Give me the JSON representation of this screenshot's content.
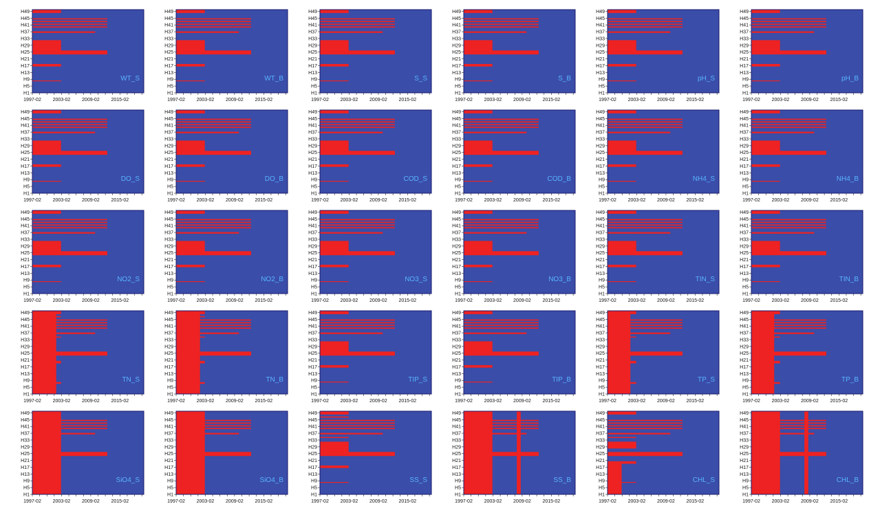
{
  "figure": {
    "rows": 5,
    "cols": 6,
    "colors": {
      "missing": "#ee2222",
      "present": "#3a4da8",
      "frame": "#1a1a6e",
      "label": "#59b4ff"
    }
  },
  "chart_data": {
    "type": "heatmap",
    "description_of_encoding": "red = missing observation, blue = available observation",
    "x_ticks": [
      "1997-02",
      "2003-02",
      "2009-02",
      "2015-02"
    ],
    "x_range_years": [
      1997.1,
      2020.0
    ],
    "y_ticks": [
      "H49",
      "H45",
      "H41",
      "H37",
      "H33",
      "H29",
      "H25",
      "H21",
      "H17",
      "H13",
      "H9",
      "H5",
      "H1"
    ],
    "y_range_station": [
      1,
      50
    ],
    "patterns": {
      "base": [
        {
          "y": [
            48,
            50
          ],
          "x": [
            1997.1,
            2003.0
          ]
        },
        {
          "y": [
            44.2,
            44.9
          ],
          "x": [
            1997.1,
            2012.5
          ]
        },
        {
          "y": [
            42.6,
            43.3
          ],
          "x": [
            1997.1,
            2012.5
          ]
        },
        {
          "y": [
            41.0,
            41.7
          ],
          "x": [
            1997.1,
            2012.5
          ]
        },
        {
          "y": [
            39.4,
            40.1
          ],
          "x": [
            1997.1,
            2012.5
          ]
        },
        {
          "y": [
            36.3,
            37.2
          ],
          "x": [
            1997.1,
            2010.0
          ]
        },
        {
          "y": [
            25.6,
            32.0
          ],
          "x": [
            1997.1,
            2003.0
          ]
        },
        {
          "y": [
            23.6,
            26.0
          ],
          "x": [
            1997.1,
            2012.5
          ]
        },
        {
          "y": [
            16.5,
            18.0
          ],
          "x": [
            1997.1,
            2003.0
          ]
        },
        {
          "y": [
            7.8,
            8.3
          ],
          "x": [
            1997.1,
            2003.0
          ]
        }
      ],
      "tn": [
        {
          "y": [
            1,
            50
          ],
          "x": [
            1997.1,
            2002.0
          ]
        },
        {
          "y": [
            48,
            50
          ],
          "x": [
            1997.1,
            2003.0
          ]
        },
        {
          "y": [
            46.2,
            46.9
          ],
          "x": [
            1997.1,
            2003.0
          ]
        },
        {
          "y": [
            44.2,
            44.9
          ],
          "x": [
            1997.1,
            2012.5
          ]
        },
        {
          "y": [
            42.6,
            43.3
          ],
          "x": [
            1997.1,
            2012.5
          ]
        },
        {
          "y": [
            41.0,
            41.7
          ],
          "x": [
            1997.1,
            2012.5
          ]
        },
        {
          "y": [
            39.4,
            40.1
          ],
          "x": [
            1997.1,
            2012.5
          ]
        },
        {
          "y": [
            36.3,
            37.2
          ],
          "x": [
            1997.1,
            2010.0
          ]
        },
        {
          "y": [
            34.2,
            34.8
          ],
          "x": [
            1997.1,
            2003.0
          ]
        },
        {
          "y": [
            23.6,
            26.0
          ],
          "x": [
            1997.1,
            2012.5
          ]
        },
        {
          "y": [
            19.0,
            20.5
          ],
          "x": [
            1997.1,
            2003.0
          ]
        },
        {
          "y": [
            7.0,
            8.0
          ],
          "x": [
            1997.1,
            2003.0
          ]
        }
      ],
      "tp": [
        {
          "y": [
            1,
            50
          ],
          "x": [
            1997.1,
            2001.8
          ]
        },
        {
          "y": [
            48,
            50
          ],
          "x": [
            1997.1,
            2003.0
          ]
        },
        {
          "y": [
            44.2,
            44.9
          ],
          "x": [
            1997.1,
            2012.5
          ]
        },
        {
          "y": [
            42.6,
            43.3
          ],
          "x": [
            1997.1,
            2012.5
          ]
        },
        {
          "y": [
            41.0,
            41.7
          ],
          "x": [
            1997.1,
            2012.5
          ]
        },
        {
          "y": [
            39.4,
            40.1
          ],
          "x": [
            1997.1,
            2012.5
          ]
        },
        {
          "y": [
            36.3,
            37.2
          ],
          "x": [
            1997.1,
            2010.0
          ]
        },
        {
          "y": [
            34.2,
            34.8
          ],
          "x": [
            1997.1,
            2003.0
          ]
        },
        {
          "y": [
            23.6,
            26.0
          ],
          "x": [
            1997.1,
            2012.5
          ]
        },
        {
          "y": [
            19.0,
            20.5
          ],
          "x": [
            1997.1,
            2003.0
          ]
        },
        {
          "y": [
            7.0,
            8.0
          ],
          "x": [
            1997.1,
            2003.0
          ]
        }
      ],
      "sio4": [
        {
          "y": [
            1,
            50
          ],
          "x": [
            1997.1,
            2003.0
          ]
        },
        {
          "y": [
            44.2,
            44.9
          ],
          "x": [
            1997.1,
            2012.5
          ]
        },
        {
          "y": [
            42.6,
            43.3
          ],
          "x": [
            1997.1,
            2012.5
          ]
        },
        {
          "y": [
            41.0,
            41.7
          ],
          "x": [
            1997.1,
            2012.5
          ]
        },
        {
          "y": [
            39.4,
            40.1
          ],
          "x": [
            1997.1,
            2012.5
          ]
        },
        {
          "y": [
            36.3,
            37.2
          ],
          "x": [
            1997.1,
            2010.0
          ]
        },
        {
          "y": [
            23.6,
            26.0
          ],
          "x": [
            1997.1,
            2012.5
          ]
        }
      ],
      "ss_s": [
        {
          "y": [
            48,
            50
          ],
          "x": [
            1997.1,
            2003.0
          ]
        },
        {
          "y": [
            46.2,
            46.9
          ],
          "x": [
            1997.1,
            2003.0
          ]
        },
        {
          "y": [
            44.2,
            44.9
          ],
          "x": [
            1997.1,
            2012.5
          ]
        },
        {
          "y": [
            42.6,
            43.3
          ],
          "x": [
            1997.1,
            2012.5
          ]
        },
        {
          "y": [
            41.0,
            41.7
          ],
          "x": [
            1997.1,
            2012.5
          ]
        },
        {
          "y": [
            39.4,
            40.1
          ],
          "x": [
            1997.1,
            2012.5
          ]
        },
        {
          "y": [
            36.3,
            37.2
          ],
          "x": [
            1997.1,
            2010.0
          ]
        },
        {
          "y": [
            34.2,
            34.8
          ],
          "x": [
            1997.1,
            2003.0
          ]
        },
        {
          "y": [
            25.6,
            32.0
          ],
          "x": [
            1997.1,
            2003.0
          ]
        },
        {
          "y": [
            23.6,
            26.0
          ],
          "x": [
            1997.1,
            2012.5
          ]
        },
        {
          "y": [
            16.5,
            18.0
          ],
          "x": [
            1997.1,
            2003.0
          ]
        },
        {
          "y": [
            7.8,
            8.3
          ],
          "x": [
            1997.1,
            2003.0
          ]
        }
      ],
      "ss_b": [
        {
          "y": [
            1,
            50
          ],
          "x": [
            1997.1,
            2003.0
          ]
        },
        {
          "y": [
            1,
            50
          ],
          "x": [
            2008.0,
            2008.8
          ]
        },
        {
          "y": [
            44.2,
            44.9
          ],
          "x": [
            1997.1,
            2012.5
          ]
        },
        {
          "y": [
            42.6,
            43.3
          ],
          "x": [
            1997.1,
            2012.5
          ]
        },
        {
          "y": [
            41.0,
            41.7
          ],
          "x": [
            1997.1,
            2012.5
          ]
        },
        {
          "y": [
            39.4,
            40.1
          ],
          "x": [
            1997.1,
            2012.5
          ]
        },
        {
          "y": [
            36.3,
            37.2
          ],
          "x": [
            1997.1,
            2010.0
          ]
        },
        {
          "y": [
            23.6,
            26.0
          ],
          "x": [
            1997.1,
            2012.5
          ]
        }
      ],
      "chl_s": [
        {
          "y": [
            48,
            50
          ],
          "x": [
            1997.1,
            2003.0
          ]
        },
        {
          "y": [
            44.2,
            44.9
          ],
          "x": [
            1997.1,
            2012.5
          ]
        },
        {
          "y": [
            42.6,
            43.3
          ],
          "x": [
            1997.1,
            2012.5
          ]
        },
        {
          "y": [
            41.0,
            41.7
          ],
          "x": [
            1997.1,
            2012.5
          ]
        },
        {
          "y": [
            39.4,
            40.1
          ],
          "x": [
            1997.1,
            2012.5
          ]
        },
        {
          "y": [
            36.3,
            37.2
          ],
          "x": [
            1997.1,
            2010.0
          ]
        },
        {
          "y": [
            34.2,
            34.8
          ],
          "x": [
            1997.1,
            2003.0
          ]
        },
        {
          "y": [
            28.0,
            32.0
          ],
          "x": [
            1997.1,
            2003.0
          ]
        },
        {
          "y": [
            23.6,
            26.0
          ],
          "x": [
            1997.1,
            2012.5
          ]
        },
        {
          "y": [
            19.0,
            20.5
          ],
          "x": [
            1997.1,
            2003.0
          ]
        },
        {
          "y": [
            1,
            20
          ],
          "x": [
            1997.1,
            2000.0
          ]
        },
        {
          "y": [
            7.8,
            8.3
          ],
          "x": [
            1997.1,
            2003.0
          ]
        }
      ],
      "chl_b": [
        {
          "y": [
            1,
            50
          ],
          "x": [
            1997.1,
            2003.0
          ]
        },
        {
          "y": [
            1,
            50
          ],
          "x": [
            2008.0,
            2008.8
          ]
        },
        {
          "y": [
            44.2,
            44.9
          ],
          "x": [
            1997.1,
            2012.5
          ]
        },
        {
          "y": [
            42.6,
            43.3
          ],
          "x": [
            1997.1,
            2012.5
          ]
        },
        {
          "y": [
            41.0,
            41.7
          ],
          "x": [
            1997.1,
            2012.5
          ]
        },
        {
          "y": [
            39.4,
            40.1
          ],
          "x": [
            1997.1,
            2012.5
          ]
        },
        {
          "y": [
            36.3,
            37.2
          ],
          "x": [
            1997.1,
            2010.0
          ]
        },
        {
          "y": [
            23.6,
            26.0
          ],
          "x": [
            1997.1,
            2012.5
          ]
        }
      ]
    },
    "panels": [
      {
        "label": "WT_S",
        "pattern": "base"
      },
      {
        "label": "WT_B",
        "pattern": "base"
      },
      {
        "label": "S_S",
        "pattern": "base"
      },
      {
        "label": "S_B",
        "pattern": "base"
      },
      {
        "label": "pH_S",
        "pattern": "base"
      },
      {
        "label": "pH_B",
        "pattern": "base"
      },
      {
        "label": "DO_S",
        "pattern": "base"
      },
      {
        "label": "DO_B",
        "pattern": "base"
      },
      {
        "label": "COD_S",
        "pattern": "base"
      },
      {
        "label": "COD_B",
        "pattern": "base"
      },
      {
        "label": "NH4_S",
        "pattern": "base"
      },
      {
        "label": "NH4_B",
        "pattern": "base"
      },
      {
        "label": "NO2_S",
        "pattern": "base"
      },
      {
        "label": "NO2_B",
        "pattern": "base"
      },
      {
        "label": "NO3_S",
        "pattern": "base"
      },
      {
        "label": "NO3_B",
        "pattern": "base"
      },
      {
        "label": "TIN_S",
        "pattern": "base"
      },
      {
        "label": "TIN_B",
        "pattern": "base"
      },
      {
        "label": "TN_S",
        "pattern": "tn"
      },
      {
        "label": "TN_B",
        "pattern": "tn"
      },
      {
        "label": "TIP_S",
        "pattern": "base"
      },
      {
        "label": "TIP_B",
        "pattern": "base"
      },
      {
        "label": "TP_S",
        "pattern": "tp"
      },
      {
        "label": "TP_B",
        "pattern": "tp"
      },
      {
        "label": "SiO4_S",
        "pattern": "sio4"
      },
      {
        "label": "SiO4_B",
        "pattern": "sio4"
      },
      {
        "label": "SS_S",
        "pattern": "ss_s"
      },
      {
        "label": "SS_B",
        "pattern": "ss_b"
      },
      {
        "label": "CHL_S",
        "pattern": "chl_s"
      },
      {
        "label": "CHL_B",
        "pattern": "chl_b"
      }
    ]
  }
}
